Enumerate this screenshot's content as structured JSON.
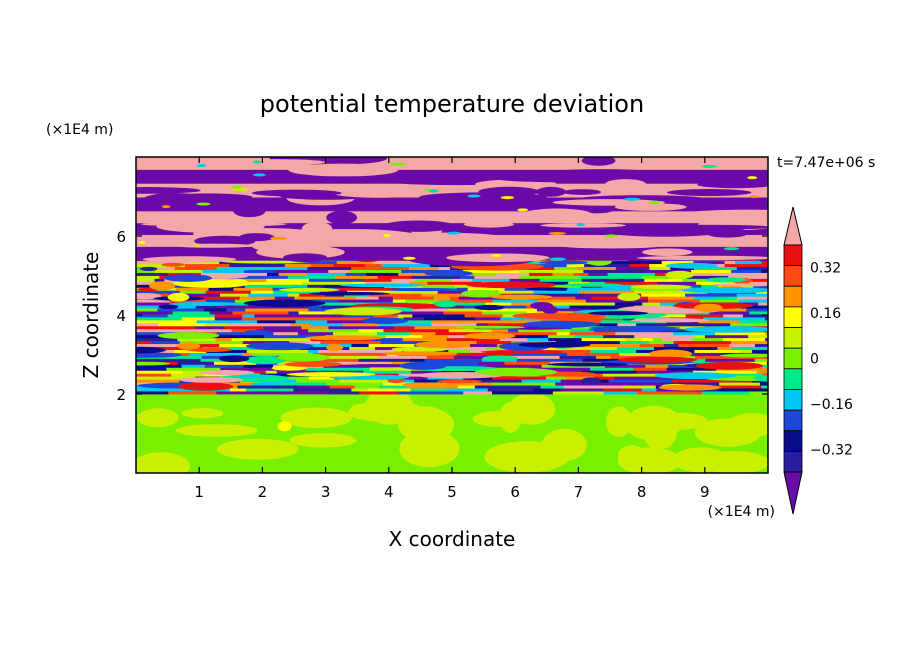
{
  "chart_data": {
    "type": "heatmap",
    "title": "potential temperature deviation",
    "xlabel": "X coordinate",
    "ylabel": "Z coordinate",
    "x_unit": "(×1E4 m)",
    "y_unit": "(×1E4 m)",
    "time_label": "t=7.47e+06 s",
    "xlim": [
      0,
      10
    ],
    "ylim": [
      0,
      8
    ],
    "x_ticks": [
      "1",
      "2",
      "3",
      "4",
      "5",
      "6",
      "7",
      "8",
      "9"
    ],
    "y_ticks": [
      "2",
      "4",
      "6"
    ],
    "colorbar": {
      "levels": [
        -0.48,
        -0.4,
        -0.32,
        -0.24,
        -0.16,
        -0.08,
        0,
        0.08,
        0.16,
        0.24,
        0.32,
        0.4,
        0.48
      ],
      "colors": [
        "#6a0aa8",
        "#2a1d9e",
        "#0a0a8c",
        "#1e46d8",
        "#00c8f0",
        "#00e88a",
        "#78f000",
        "#c8f000",
        "#ffff00",
        "#ff9400",
        "#ff4a10",
        "#e81010",
        "#f5a6a6"
      ],
      "extend": "both",
      "tick_labels": [
        "-0.32",
        "-0.16",
        "0",
        "0.16",
        "0.32"
      ],
      "tick_values": [
        -0.32,
        -0.16,
        0,
        0.16,
        0.32
      ]
    },
    "fields": {
      "lower_region": {
        "z_range": [
          0,
          2
        ],
        "values": "mostly 0 to 0.08 (green)"
      },
      "turbulent_region": {
        "z_range": [
          2,
          5.5
        ],
        "values": "mixed -0.48 to 0.48"
      },
      "upper_region": {
        "z_range": [
          5.5,
          8
        ],
        "values": "alternating -0.48 and 0.48 layers"
      }
    }
  }
}
